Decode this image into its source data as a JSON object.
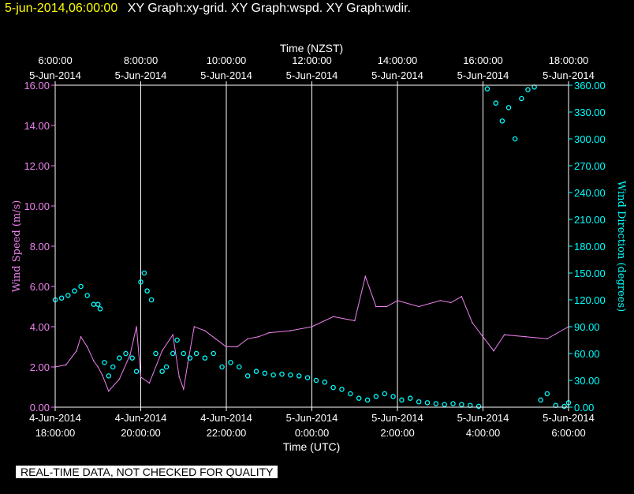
{
  "header": {
    "datetime": "5-jun-2014,06:00:00",
    "graphs": "XY Graph:xy-grid.  XY Graph:wspd.  XY Graph:wdir."
  },
  "notice": "REAL-TIME DATA, NOT CHECKED FOR QUALITY",
  "chart_data": {
    "type": "scatter",
    "top_axis_title": "Time (NZST)",
    "bottom_axis_title": "Time (UTC)",
    "left_axis_title": "Wind Speed (m/s)",
    "right_axis_title": "Wind Direction (degrees)",
    "top_ticks": [
      {
        "h": 0,
        "l1": "6:00:00",
        "l2": "5-Jun-2014"
      },
      {
        "h": 2,
        "l1": "8:00:00",
        "l2": "5-Jun-2014"
      },
      {
        "h": 4,
        "l1": "10:00:00",
        "l2": "5-Jun-2014"
      },
      {
        "h": 6,
        "l1": "12:00:00",
        "l2": "5-Jun-2014"
      },
      {
        "h": 8,
        "l1": "14:00:00",
        "l2": "5-Jun-2014"
      },
      {
        "h": 10,
        "l1": "16:00:00",
        "l2": "5-Jun-2014"
      },
      {
        "h": 12,
        "l1": "18:00:00",
        "l2": "5-Jun-2014"
      }
    ],
    "bottom_ticks": [
      {
        "h": 0,
        "l1": "4-Jun-2014",
        "l2": "18:00:00"
      },
      {
        "h": 2,
        "l1": "4-Jun-2014",
        "l2": "20:00:00"
      },
      {
        "h": 4,
        "l1": "4-Jun-2014",
        "l2": "22:00:00"
      },
      {
        "h": 6,
        "l1": "5-Jun-2014",
        "l2": "0:00:00"
      },
      {
        "h": 8,
        "l1": "5-Jun-2014",
        "l2": "2:00:00"
      },
      {
        "h": 10,
        "l1": "5-Jun-2014",
        "l2": "4:00:00"
      },
      {
        "h": 12,
        "l1": "5-Jun-2014",
        "l2": "6:00:00"
      }
    ],
    "x_range": [
      0,
      12
    ],
    "y_left_range": [
      0,
      16
    ],
    "y_left_ticks": [
      "0.00",
      "2.00",
      "4.00",
      "6.00",
      "8.00",
      "10.00",
      "12.00",
      "14.00",
      "16.00"
    ],
    "y_right_range": [
      0,
      360
    ],
    "y_right_ticks": [
      "0.00",
      "30.00",
      "60.00",
      "90.00",
      "120.00",
      "150.00",
      "180.00",
      "210.00",
      "240.00",
      "270.00",
      "300.00",
      "330.00",
      "360.00"
    ],
    "series": [
      {
        "key": "wind_speed",
        "axis": "left",
        "color": "#ee82ee",
        "style": "line",
        "x": [
          0,
          0.25,
          0.5,
          0.6,
          0.75,
          0.9,
          1.0,
          1.1,
          1.25,
          1.5,
          1.75,
          1.9,
          2.0,
          2.2,
          2.5,
          2.75,
          2.9,
          3.0,
          3.1,
          3.25,
          3.5,
          3.75,
          4.0,
          4.25,
          4.5,
          4.75,
          5.0,
          5.5,
          6.0,
          6.5,
          7.0,
          7.25,
          7.5,
          7.75,
          8.0,
          8.5,
          9.0,
          9.25,
          9.5,
          9.75,
          10.0,
          10.25,
          10.5,
          11.0,
          11.5,
          12.0
        ],
        "y": [
          2.0,
          2.1,
          2.8,
          3.5,
          3.0,
          2.3,
          2.0,
          1.6,
          0.8,
          1.4,
          2.6,
          4.0,
          1.5,
          1.2,
          2.8,
          3.6,
          1.5,
          0.9,
          2.2,
          4.0,
          3.8,
          3.4,
          3.0,
          3.0,
          3.4,
          3.5,
          3.7,
          3.8,
          4.0,
          4.5,
          4.3,
          6.5,
          5.0,
          5.0,
          5.3,
          5.0,
          5.3,
          5.2,
          5.5,
          4.2,
          3.5,
          2.8,
          3.6,
          3.5,
          3.4,
          4.0
        ]
      },
      {
        "key": "wind_direction",
        "axis": "right",
        "color": "#00ffff",
        "style": "points",
        "x": [
          0,
          0.15,
          0.3,
          0.45,
          0.6,
          0.75,
          0.9,
          1.0,
          1.05,
          1.15,
          1.25,
          1.35,
          1.5,
          1.65,
          1.8,
          1.9,
          2.0,
          2.08,
          2.15,
          2.25,
          2.35,
          2.5,
          2.6,
          2.75,
          2.85,
          3.0,
          3.15,
          3.3,
          3.5,
          3.7,
          3.9,
          4.1,
          4.3,
          4.5,
          4.7,
          4.9,
          5.1,
          5.3,
          5.5,
          5.7,
          5.9,
          6.1,
          6.3,
          6.5,
          6.7,
          6.9,
          7.1,
          7.3,
          7.5,
          7.7,
          7.9,
          8.1,
          8.3,
          8.5,
          8.7,
          8.9,
          9.1,
          9.3,
          9.5,
          9.7,
          9.9,
          10.1,
          10.3,
          10.45,
          10.6,
          10.75,
          10.9,
          11.05,
          11.2,
          11.35,
          11.5,
          11.7,
          11.9,
          12.0
        ],
        "y": [
          120,
          122,
          125,
          130,
          135,
          125,
          115,
          115,
          110,
          50,
          35,
          45,
          55,
          60,
          55,
          40,
          140,
          150,
          130,
          120,
          60,
          40,
          45,
          60,
          75,
          60,
          55,
          60,
          55,
          60,
          45,
          50,
          45,
          35,
          40,
          38,
          36,
          37,
          36,
          35,
          33,
          30,
          28,
          22,
          20,
          15,
          10,
          8,
          12,
          15,
          12,
          8,
          10,
          6,
          5,
          4,
          3,
          4,
          3,
          2,
          1,
          356,
          340,
          320,
          335,
          300,
          345,
          355,
          358,
          8,
          15,
          2,
          1,
          5
        ]
      }
    ]
  }
}
